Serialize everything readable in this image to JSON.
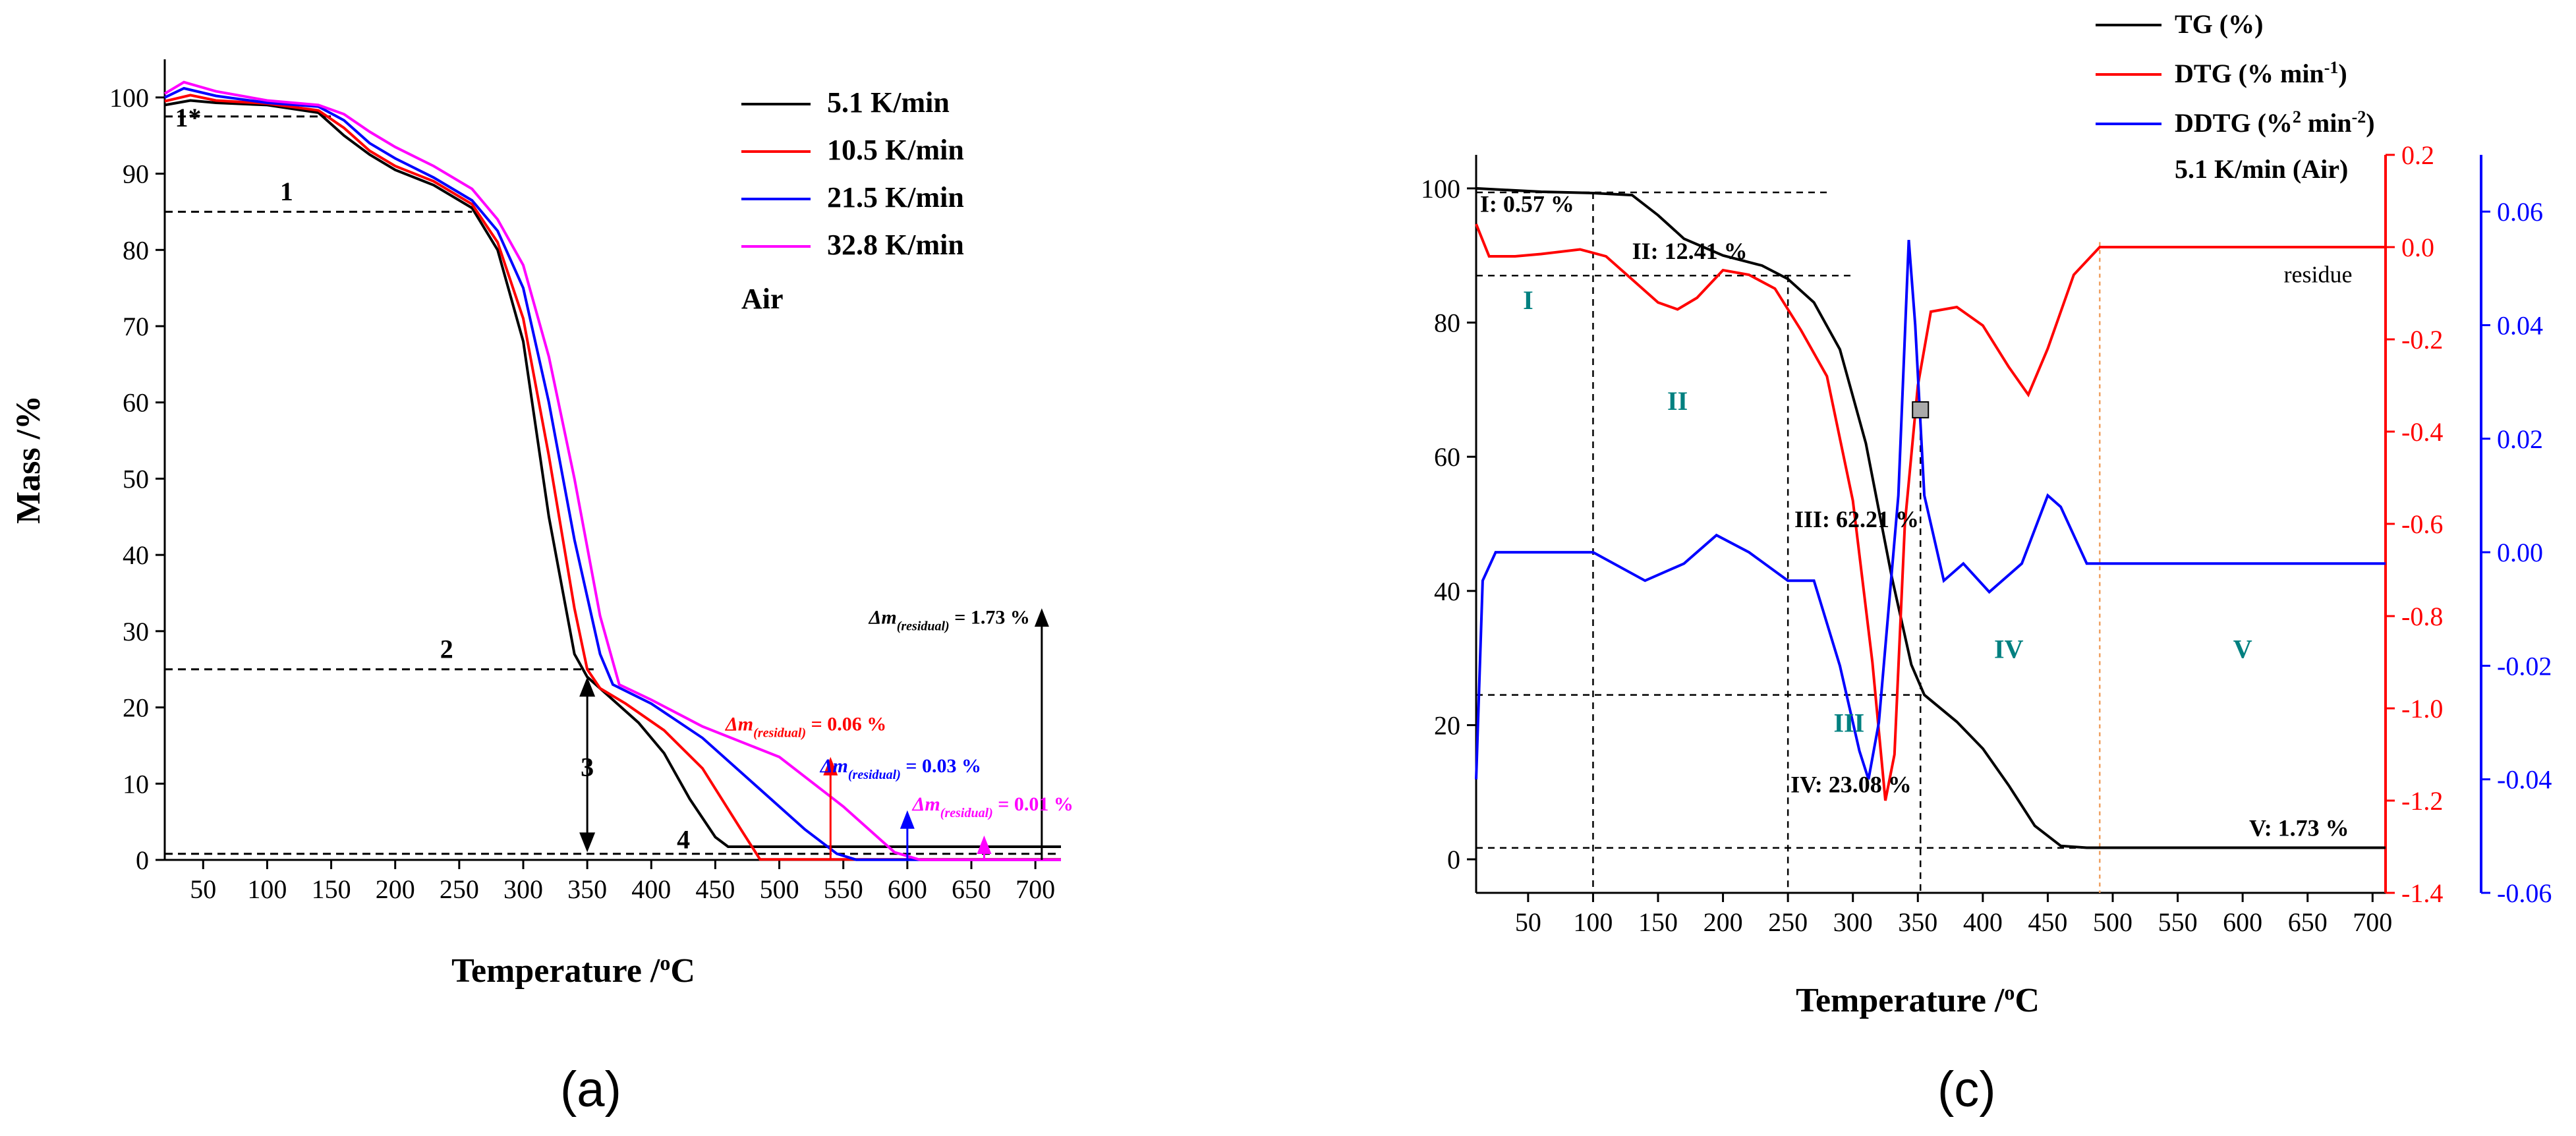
{
  "chart_data": [
    {
      "panel_label": "(a)",
      "type": "line",
      "xlabel": "Temperature /",
      "xlabel_unit": "oC",
      "ylabel": "Mass /%",
      "xlim": [
        20,
        720
      ],
      "ylim": [
        0,
        105
      ],
      "x_ticks": [
        50,
        100,
        150,
        200,
        250,
        300,
        350,
        400,
        450,
        500,
        550,
        600,
        650,
        700
      ],
      "y_ticks": [
        0,
        10,
        20,
        30,
        40,
        50,
        60,
        70,
        80,
        90,
        100
      ],
      "legend": [
        "5.1 K/min",
        "10.5 K/min",
        "21.5 K/min",
        "32.8 K/min"
      ],
      "legend_position": "top-right",
      "atmosphere": "Air",
      "series": [
        {
          "name": "5.1 K/min",
          "color": "#000000",
          "points": [
            [
              20,
              99
            ],
            [
              40,
              99.6
            ],
            [
              60,
              99.3
            ],
            [
              100,
              99
            ],
            [
              140,
              98
            ],
            [
              160,
              95
            ],
            [
              180,
              92.5
            ],
            [
              200,
              90.5
            ],
            [
              230,
              88.5
            ],
            [
              260,
              85.5
            ],
            [
              280,
              80
            ],
            [
              300,
              68
            ],
            [
              320,
              45
            ],
            [
              340,
              27
            ],
            [
              350,
              24
            ],
            [
              370,
              21
            ],
            [
              390,
              18
            ],
            [
              410,
              14
            ],
            [
              430,
              8
            ],
            [
              450,
              3
            ],
            [
              460,
              1.73
            ],
            [
              720,
              1.73
            ]
          ]
        },
        {
          "name": "10.5 K/min",
          "color": "#ff0000",
          "points": [
            [
              20,
              99.5
            ],
            [
              40,
              100.3
            ],
            [
              60,
              99.6
            ],
            [
              100,
              99.2
            ],
            [
              140,
              98.3
            ],
            [
              160,
              96
            ],
            [
              180,
              93
            ],
            [
              200,
              91
            ],
            [
              230,
              89
            ],
            [
              260,
              86
            ],
            [
              280,
              81
            ],
            [
              300,
              71
            ],
            [
              320,
              53
            ],
            [
              340,
              33
            ],
            [
              350,
              25
            ],
            [
              360,
              22.5
            ],
            [
              380,
              20.5
            ],
            [
              410,
              17
            ],
            [
              440,
              12
            ],
            [
              470,
              4
            ],
            [
              485,
              0.06
            ],
            [
              720,
              0.06
            ]
          ]
        },
        {
          "name": "21.5 K/min",
          "color": "#0000ff",
          "points": [
            [
              20,
              100
            ],
            [
              35,
              101.2
            ],
            [
              60,
              100.2
            ],
            [
              100,
              99.3
            ],
            [
              140,
              98.8
            ],
            [
              160,
              97
            ],
            [
              180,
              94
            ],
            [
              200,
              92
            ],
            [
              230,
              89.5
            ],
            [
              260,
              86.5
            ],
            [
              280,
              82.5
            ],
            [
              300,
              75
            ],
            [
              320,
              60
            ],
            [
              340,
              42
            ],
            [
              360,
              27
            ],
            [
              370,
              23
            ],
            [
              400,
              20.5
            ],
            [
              440,
              16
            ],
            [
              480,
              10
            ],
            [
              520,
              4
            ],
            [
              545,
              0.8
            ],
            [
              560,
              0.03
            ],
            [
              720,
              0.03
            ]
          ]
        },
        {
          "name": "32.8 K/min",
          "color": "#ff00ff",
          "points": [
            [
              20,
              100.5
            ],
            [
              35,
              102
            ],
            [
              60,
              100.8
            ],
            [
              100,
              99.6
            ],
            [
              140,
              99
            ],
            [
              160,
              97.8
            ],
            [
              180,
              95.5
            ],
            [
              200,
              93.5
            ],
            [
              230,
              91
            ],
            [
              260,
              88
            ],
            [
              280,
              84
            ],
            [
              300,
              78
            ],
            [
              320,
              66
            ],
            [
              340,
              50
            ],
            [
              360,
              32
            ],
            [
              375,
              23
            ],
            [
              400,
              21
            ],
            [
              440,
              17.5
            ],
            [
              500,
              13.5
            ],
            [
              550,
              7
            ],
            [
              590,
              1
            ],
            [
              610,
              0.01
            ],
            [
              720,
              0.01
            ]
          ]
        }
      ],
      "stage_markers": [
        {
          "label": "1*",
          "y": 97.5,
          "x_from": 20,
          "x_to": 150
        },
        {
          "label": "1",
          "y": 85,
          "x_from": 20,
          "x_to": 260
        },
        {
          "label": "2",
          "y": 25,
          "x_from": 20,
          "x_to": 355
        },
        {
          "label": "4",
          "y": 0.8,
          "x_from": 20,
          "x_to": 720
        }
      ],
      "stage3_label": "3",
      "annotations": [
        {
          "text_main": "Δm",
          "text_sub": "(residual)",
          "text_value": " = 1.73 %",
          "color": "#000000",
          "arrow_x": 705,
          "arrow_y_top": 33,
          "label_x": 570,
          "label_y": 31
        },
        {
          "text_main": "Δm",
          "text_sub": "(residual)",
          "text_value": " = 0.06 %",
          "color": "#ff0000",
          "arrow_x": 540,
          "arrow_y_top": 13.5,
          "label_x": 458,
          "label_y": 17
        },
        {
          "text_main": "Δm",
          "text_sub": "(residual)",
          "text_value": " = 0.03 %",
          "color": "#0000ff",
          "arrow_x": 600,
          "arrow_y_top": 6.5,
          "label_x": 532,
          "label_y": 11.5
        },
        {
          "text_main": "Δm",
          "text_sub": "(residual)",
          "text_value": " = 0.01 %",
          "color": "#ff00ff",
          "arrow_x": 660,
          "arrow_y_top": 3.2,
          "label_x": 604,
          "label_y": 6.5
        }
      ]
    },
    {
      "panel_label": "(c)",
      "type": "line",
      "xlabel": "Temperature /",
      "xlabel_unit": "oC",
      "xlim": [
        10,
        710
      ],
      "x_ticks": [
        50,
        100,
        150,
        200,
        250,
        300,
        350,
        400,
        450,
        500,
        550,
        600,
        650,
        700
      ],
      "y_left": {
        "lim": [
          -5,
          105
        ],
        "ticks": [
          0,
          20,
          40,
          60,
          80,
          100
        ],
        "color": "#000000"
      },
      "y_right1": {
        "lim": [
          -1.4,
          0.2
        ],
        "ticks": [
          "0.2",
          "0.0",
          "-0.2",
          "-0.4",
          "-0.6",
          "-0.8",
          "-1.0",
          "-1.2",
          "-1.4"
        ],
        "color": "#ff0000"
      },
      "y_right2": {
        "lim": [
          -0.06,
          0.07
        ],
        "ticks": [
          "0.06",
          "0.04",
          "0.02",
          "0.00",
          "-0.02",
          "-0.04",
          "-0.06"
        ],
        "color": "#0000ff"
      },
      "legend": {
        "tg": "TG (%)",
        "dtg": "DTG (% min",
        "dtg_sup": "-1",
        "dtg_close": ")",
        "ddtg": "DDTG (%",
        "ddtg_sup1": "2",
        "ddtg_mid": " min",
        "ddtg_sup2": "-2",
        "ddtg_close": ")",
        "condition": "5.1 K/min (Air)"
      },
      "legend_position": "top-right",
      "series": [
        {
          "name": "TG (%)",
          "color": "#000000",
          "axis": "left",
          "points": [
            [
              10,
              100
            ],
            [
              60,
              99.5
            ],
            [
              100,
              99.3
            ],
            [
              130,
              99
            ],
            [
              150,
              96
            ],
            [
              170,
              92.5
            ],
            [
              200,
              90
            ],
            [
              230,
              88.5
            ],
            [
              250,
              86.5
            ],
            [
              270,
              83
            ],
            [
              290,
              76
            ],
            [
              310,
              62
            ],
            [
              330,
              42
            ],
            [
              345,
              29
            ],
            [
              355,
              24.5
            ],
            [
              380,
              20.5
            ],
            [
              400,
              16.5
            ],
            [
              420,
              11
            ],
            [
              440,
              5
            ],
            [
              460,
              2
            ],
            [
              480,
              1.73
            ],
            [
              710,
              1.73
            ]
          ]
        },
        {
          "name": "DTG (% min-1)",
          "color": "#ff0000",
          "axis": "right1",
          "points": [
            [
              10,
              0.05
            ],
            [
              20,
              -0.02
            ],
            [
              40,
              -0.02
            ],
            [
              60,
              -0.015
            ],
            [
              90,
              -0.005
            ],
            [
              110,
              -0.02
            ],
            [
              130,
              -0.07
            ],
            [
              150,
              -0.12
            ],
            [
              165,
              -0.135
            ],
            [
              180,
              -0.11
            ],
            [
              200,
              -0.05
            ],
            [
              220,
              -0.06
            ],
            [
              240,
              -0.09
            ],
            [
              260,
              -0.18
            ],
            [
              280,
              -0.28
            ],
            [
              300,
              -0.55
            ],
            [
              315,
              -0.9
            ],
            [
              325,
              -1.2
            ],
            [
              332,
              -1.1
            ],
            [
              340,
              -0.6
            ],
            [
              350,
              -0.3
            ],
            [
              360,
              -0.14
            ],
            [
              380,
              -0.13
            ],
            [
              400,
              -0.17
            ],
            [
              420,
              -0.26
            ],
            [
              435,
              -0.32
            ],
            [
              450,
              -0.22
            ],
            [
              470,
              -0.06
            ],
            [
              490,
              0.0
            ],
            [
              710,
              0.0
            ]
          ]
        },
        {
          "name": "DDTG (%2 min-2)",
          "color": "#0000ff",
          "axis": "right2",
          "points": [
            [
              10,
              -0.04
            ],
            [
              15,
              -0.005
            ],
            [
              25,
              0.0
            ],
            [
              60,
              0.0
            ],
            [
              100,
              0.0
            ],
            [
              140,
              -0.005
            ],
            [
              170,
              -0.002
            ],
            [
              195,
              0.003
            ],
            [
              220,
              0.0
            ],
            [
              250,
              -0.005
            ],
            [
              270,
              -0.005
            ],
            [
              290,
              -0.02
            ],
            [
              305,
              -0.035
            ],
            [
              312,
              -0.04
            ],
            [
              320,
              -0.03
            ],
            [
              335,
              0.01
            ],
            [
              343,
              0.055
            ],
            [
              348,
              0.04
            ],
            [
              355,
              0.01
            ],
            [
              370,
              -0.005
            ],
            [
              385,
              -0.002
            ],
            [
              405,
              -0.007
            ],
            [
              430,
              -0.002
            ],
            [
              450,
              0.01
            ],
            [
              460,
              0.008
            ],
            [
              480,
              -0.002
            ],
            [
              710,
              -0.002
            ]
          ]
        }
      ],
      "stage_labels": [
        {
          "text": "I",
          "x": 50,
          "y": 82,
          "color": "#008080"
        },
        {
          "text": "II",
          "x": 165,
          "y": 67,
          "color": "#008080"
        },
        {
          "text": "III",
          "x": 297,
          "y": 19,
          "color": "#008080"
        },
        {
          "text": "IV",
          "x": 420,
          "y": 30,
          "color": "#008080"
        },
        {
          "text": "V",
          "x": 600,
          "y": 30,
          "color": "#008080"
        }
      ],
      "mass_loss_labels": [
        {
          "text": "I: 0.57 %",
          "x": 13,
          "y": 96.5
        },
        {
          "text": "II: 12.41 %",
          "x": 130,
          "y": 89.5
        },
        {
          "text": "III: 62.21 %",
          "x": 255,
          "y": 49.5
        },
        {
          "text": "IV: 23.08 %",
          "x": 252,
          "y": 10
        },
        {
          "text": "V: 1.73 %",
          "x": 605,
          "y": 3.5
        }
      ],
      "residue_label": {
        "text": "residue",
        "x": 658,
        "y": 86
      }
    }
  ]
}
